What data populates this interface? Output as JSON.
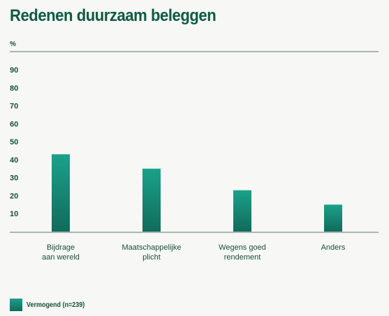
{
  "chart_data": {
    "type": "bar",
    "title": "Redenen duurzaam beleggen",
    "ylabel": "%",
    "xlabel": "",
    "ylim": [
      0,
      90
    ],
    "yticks": [
      "10",
      "20",
      "30",
      "40",
      "50",
      "60",
      "70",
      "80",
      "90"
    ],
    "categories": [
      [
        "Bijdrage",
        "aan wereld"
      ],
      [
        "Maatschappelijke",
        "plicht"
      ],
      [
        "Wegens goed",
        "rendement"
      ],
      [
        "Anders"
      ]
    ],
    "series": [
      {
        "name": "Vermogend (n=239)",
        "values": [
          43,
          35,
          23,
          15
        ]
      }
    ],
    "legend_position": "bottom-left",
    "grid": false,
    "colors": {
      "bar_top": "#1aa28a",
      "bar_bottom": "#116b5b",
      "text": "#16503d",
      "axis": "#a9b7b2"
    }
  }
}
